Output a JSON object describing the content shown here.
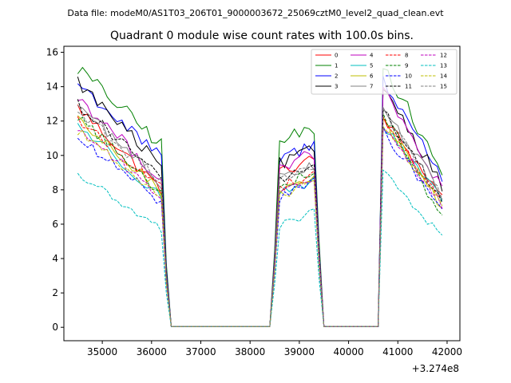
{
  "header": "Data file: modeM0/AS1T03_206T01_9000003672_25069cztM0_level2_quad_clean.evt",
  "chart_data": {
    "type": "line",
    "title": "Quadrant 0 module wise count rates with 100.0s bins.",
    "xlabel": "",
    "ylabel": "",
    "x_offset_label": "+3.274e8",
    "xlim": [
      34220,
      42260
    ],
    "ylim": [
      -0.78,
      16.35
    ],
    "xticks": [
      35000,
      36000,
      37000,
      38000,
      39000,
      40000,
      41000,
      42000
    ],
    "xtick_labels": [
      "35000",
      "36000",
      "37000",
      "38000",
      "39000",
      "40000",
      "41000",
      "42000"
    ],
    "yticks": [
      0,
      2,
      4,
      6,
      8,
      10,
      12,
      14,
      16
    ],
    "ytick_labels": [
      "0",
      "2",
      "4",
      "6",
      "8",
      "10",
      "12",
      "14",
      "16"
    ],
    "legend_position": "top-right",
    "segments": [
      {
        "start": 34500,
        "end": 36200
      },
      {
        "start": 38600,
        "end": 39300
      },
      {
        "start": 40700,
        "end": 41900
      }
    ],
    "series": [
      {
        "name": "0",
        "color": "#ff0000",
        "dash": "solid",
        "level": 10.0,
        "s1": [
          12.8,
          8.0
        ],
        "s2": 9.4,
        "s3": [
          12.2,
          7.6
        ]
      },
      {
        "name": "1",
        "color": "#008000",
        "dash": "solid",
        "level": 12.3,
        "s1": [
          15.1,
          10.6
        ],
        "s2": 11.2,
        "s3": [
          15.4,
          8.9
        ]
      },
      {
        "name": "2",
        "color": "#0000ff",
        "dash": "solid",
        "level": 11.7,
        "s1": [
          14.2,
          9.8
        ],
        "s2": 10.2,
        "s3": [
          14.5,
          8.7
        ]
      },
      {
        "name": "3",
        "color": "#000000",
        "dash": "solid",
        "level": 11.2,
        "s1": [
          14.3,
          9.3
        ],
        "s2": 9.9,
        "s3": [
          14.1,
          8.3
        ]
      },
      {
        "name": "4",
        "color": "#bf00bf",
        "dash": "solid",
        "level": 10.6,
        "s1": [
          13.4,
          8.6
        ],
        "s2": 9.7,
        "s3": [
          13.8,
          8.0
        ]
      },
      {
        "name": "5",
        "color": "#00bfbf",
        "dash": "solid",
        "level": 9.3,
        "s1": [
          11.8,
          7.6
        ],
        "s2": 8.2,
        "s3": [
          11.7,
          7.3
        ]
      },
      {
        "name": "6",
        "color": "#bfbf00",
        "dash": "solid",
        "level": 9.4,
        "s1": [
          12.0,
          7.9
        ],
        "s2": 8.5,
        "s3": [
          12.0,
          7.0
        ]
      },
      {
        "name": "7",
        "color": "#808080",
        "dash": "solid",
        "level": 10.1,
        "s1": [
          13.0,
          8.4
        ],
        "s2": 9.1,
        "s3": [
          12.9,
          7.7
        ]
      },
      {
        "name": "8",
        "color": "#ff0000",
        "dash": "dashed",
        "level": 9.5,
        "s1": [
          12.1,
          8.1
        ],
        "s2": 8.6,
        "s3": [
          12.0,
          7.4
        ]
      },
      {
        "name": "9",
        "color": "#008000",
        "dash": "dashed",
        "level": 9.6,
        "s1": [
          12.3,
          7.8
        ],
        "s2": 8.7,
        "s3": [
          12.5,
          6.4
        ]
      },
      {
        "name": "10",
        "color": "#0000ff",
        "dash": "dashed",
        "level": 8.8,
        "s1": [
          11.0,
          7.3
        ],
        "s2": 8.0,
        "s3": [
          11.4,
          6.9
        ]
      },
      {
        "name": "11",
        "color": "#000000",
        "dash": "dashed",
        "level": 10.0,
        "s1": [
          13.0,
          8.7
        ],
        "s2": 9.0,
        "s3": [
          12.6,
          7.4
        ]
      },
      {
        "name": "12",
        "color": "#bf00bf",
        "dash": "dashed",
        "level": 9.2,
        "s1": [
          11.6,
          7.6
        ],
        "s2": 8.3,
        "s3": [
          11.8,
          7.2
        ]
      },
      {
        "name": "13",
        "color": "#00bfbf",
        "dash": "dashed",
        "level": 6.9,
        "s1": [
          8.9,
          5.7
        ],
        "s2": 6.3,
        "s3": [
          9.1,
          5.2
        ]
      },
      {
        "name": "14",
        "color": "#bfbf00",
        "dash": "dashed",
        "level": 9.1,
        "s1": [
          11.5,
          7.4
        ],
        "s2": 8.1,
        "s3": [
          11.9,
          7.0
        ]
      },
      {
        "name": "15",
        "color": "#808080",
        "dash": "dashed",
        "level": 9.9,
        "s1": [
          12.6,
          8.5
        ],
        "s2": 9.0,
        "s3": [
          12.6,
          7.5
        ]
      }
    ]
  }
}
